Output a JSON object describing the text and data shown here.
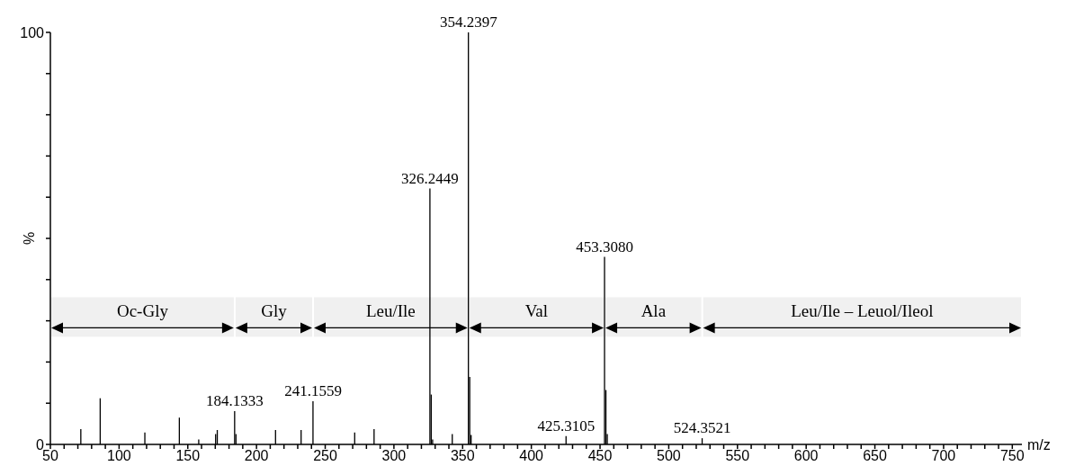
{
  "chart_data": {
    "type": "bar",
    "xlabel": "m/z",
    "ylabel": "%",
    "x": [
      72.2,
      86.3,
      118.8,
      143.9,
      158,
      170.3,
      171.5,
      184.1333,
      185.1,
      213.9,
      232.5,
      241.1559,
      271.5,
      285.6,
      326.2449,
      327.2,
      328.2,
      342.5,
      354.2397,
      355.2,
      356.2,
      425.3105,
      453.308,
      454.3,
      455.3,
      524.3521
    ],
    "values": [
      3.7,
      11.2,
      2.9,
      6.5,
      1.2,
      2.5,
      3.5,
      8.1,
      2.5,
      3.5,
      3.5,
      10.5,
      2.9,
      3.7,
      62.1,
      12.1,
      1.2,
      2.5,
      100,
      16.4,
      2.3,
      2.0,
      45.5,
      13.2,
      2.5,
      1.5
    ],
    "annotations": [
      {
        "text": "184.1333",
        "x": 184.1333,
        "y": 8.1
      },
      {
        "text": "241.1559",
        "x": 241.1559,
        "y": 10.5
      },
      {
        "text": "326.2449",
        "x": 326.2449,
        "y": 62.1
      },
      {
        "text": "354.2397",
        "x": 354.2397,
        "y": 100
      },
      {
        "text": "425.3105",
        "x": 425.3105,
        "y": 2.0
      },
      {
        "text": "453.3080",
        "x": 453.308,
        "y": 45.5
      },
      {
        "text": "524.3521",
        "x": 524.3521,
        "y": 1.5
      }
    ],
    "color": "#000000",
    "xlim": [
      50,
      757
    ],
    "xticks": [
      50,
      {
        "value": 60,
        "label": null
      },
      {
        "value": 70,
        "label": null
      },
      {
        "value": 80,
        "label": null
      },
      {
        "value": 90,
        "label": null
      },
      100,
      {
        "value": 110,
        "label": null
      },
      {
        "value": 120,
        "label": null
      },
      {
        "value": 130,
        "label": null
      },
      {
        "value": 140,
        "label": null
      },
      150,
      {
        "value": 160,
        "label": null
      },
      {
        "value": 170,
        "label": null
      },
      {
        "value": 180,
        "label": null
      },
      {
        "value": 190,
        "label": null
      },
      200,
      {
        "value": 210,
        "label": null
      },
      {
        "value": 220,
        "label": null
      },
      {
        "value": 230,
        "label": null
      },
      {
        "value": 240,
        "label": null
      },
      250,
      {
        "value": 260,
        "label": null
      },
      {
        "value": 270,
        "label": null
      },
      {
        "value": 280,
        "label": null
      },
      {
        "value": 290,
        "label": null
      },
      300,
      {
        "value": 310,
        "label": null
      },
      {
        "value": 320,
        "label": null
      },
      {
        "value": 330,
        "label": null
      },
      {
        "value": 340,
        "label": null
      },
      350,
      {
        "value": 360,
        "label": null
      },
      {
        "value": 370,
        "label": null
      },
      {
        "value": 380,
        "label": null
      },
      {
        "value": 390,
        "label": null
      },
      400,
      {
        "value": 410,
        "label": null
      },
      {
        "value": 420,
        "label": null
      },
      {
        "value": 430,
        "label": null
      },
      {
        "value": 440,
        "label": null
      },
      450,
      {
        "value": 460,
        "label": null
      },
      {
        "value": 470,
        "label": null
      },
      {
        "value": 480,
        "label": null
      },
      {
        "value": 490,
        "label": null
      },
      500,
      {
        "value": 510,
        "label": null
      },
      {
        "value": 520,
        "label": null
      },
      {
        "value": 530,
        "label": null
      },
      {
        "value": 540,
        "label": null
      },
      550,
      {
        "value": 560,
        "label": null
      },
      {
        "value": 570,
        "label": null
      },
      {
        "value": 580,
        "label": null
      },
      {
        "value": 590,
        "label": null
      },
      600,
      {
        "value": 610,
        "label": null
      },
      {
        "value": 620,
        "label": null
      },
      {
        "value": 630,
        "label": null
      },
      {
        "value": 640,
        "label": null
      },
      650,
      {
        "value": 660,
        "label": null
      },
      {
        "value": 670,
        "label": null
      },
      {
        "value": 680,
        "label": null
      },
      {
        "value": 690,
        "label": null
      },
      700,
      {
        "value": 710,
        "label": null
      },
      {
        "value": 720,
        "label": null
      },
      {
        "value": 730,
        "label": null
      },
      {
        "value": 740,
        "label": null
      },
      750
    ],
    "ylim": [
      0,
      100
    ],
    "yticks": [
      0,
      {
        "value": 10,
        "label": null
      },
      {
        "value": 20,
        "label": null
      },
      {
        "value": 30,
        "label": null
      },
      {
        "value": 40,
        "label": null
      },
      {
        "value": 50,
        "label": null
      },
      {
        "value": 60,
        "label": null
      },
      {
        "value": 70,
        "label": null
      },
      {
        "value": 80,
        "label": null
      },
      {
        "value": 90,
        "label": null
      },
      100
    ],
    "bands": [
      {
        "axis": "x",
        "from": 50,
        "to": 184.1333,
        "label": "Oc-Gly",
        "color": "#f0f0f0"
      },
      {
        "axis": "x",
        "from": 184.1333,
        "to": 241.1559,
        "label": "Gly",
        "color": "#f0f0f0"
      },
      {
        "axis": "x",
        "from": 241.1559,
        "to": 354.2397,
        "label": "Leu/Ile",
        "color": "#f0f0f0"
      },
      {
        "axis": "x",
        "from": 354.2397,
        "to": 453.308,
        "label": "Val",
        "color": "#f0f0f0"
      },
      {
        "axis": "x",
        "from": 453.308,
        "to": 524.3521,
        "label": "Ala",
        "color": "#f0f0f0"
      },
      {
        "axis": "x",
        "from": 524.3521,
        "to": 757,
        "label": "Leu/Ile – Leuol/Ileol",
        "color": "#f0f0f0"
      }
    ],
    "grid": false,
    "legend": false
  }
}
